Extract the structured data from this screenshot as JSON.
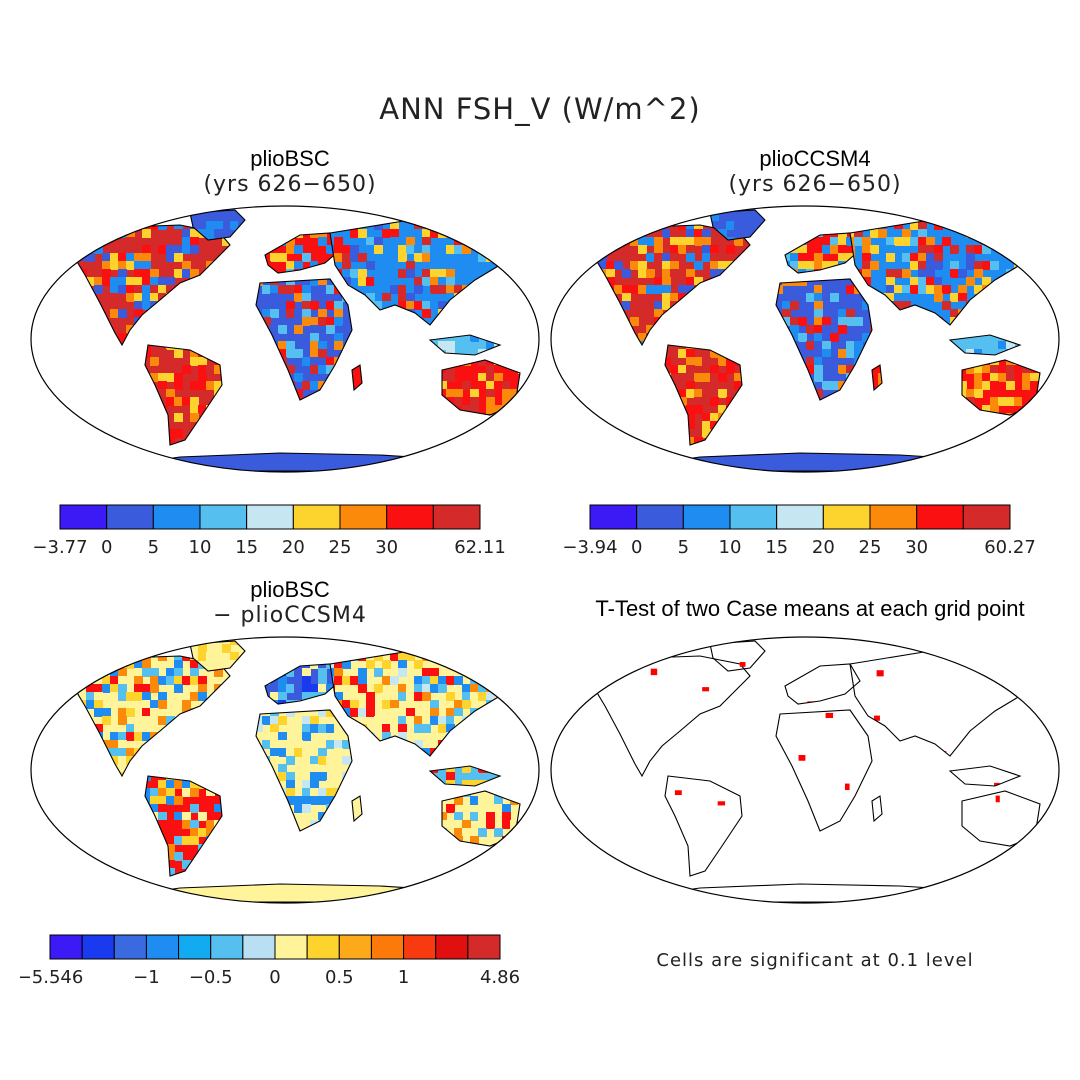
{
  "main_title": "ANN FSH_V (W/m^2)",
  "panels": [
    {
      "title": "plioBSC",
      "subtitle": "(yrs 626−650)"
    },
    {
      "title": "plioCCSM4",
      "subtitle": "(yrs 626−650)"
    },
    {
      "title": "plioBSC",
      "subtitle": "− plioCCSM4"
    },
    {
      "title": "T-Test of two Case means at each grid point",
      "subtitle": ""
    }
  ],
  "colorbars": [
    {
      "colors": [
        "#3c1af5",
        "#3a5bdc",
        "#1e8cf0",
        "#55bff0",
        "#c6e6f2",
        "#fdd32e",
        "#fb8a0a",
        "#fa1010",
        "#d42a2a"
      ],
      "labels": [
        "−3.77",
        "0",
        "5",
        "10",
        "15",
        "20",
        "25",
        "30",
        "62.11"
      ],
      "label_positions": [
        0,
        1,
        2,
        3,
        4,
        5,
        6,
        7,
        9
      ]
    },
    {
      "colors": [
        "#3c1af5",
        "#3a5bdc",
        "#1e8cf0",
        "#55bff0",
        "#c6e6f2",
        "#fdd32e",
        "#fb8a0a",
        "#fa1010",
        "#d42a2a"
      ],
      "labels": [
        "−3.94",
        "0",
        "5",
        "10",
        "15",
        "20",
        "25",
        "30",
        "60.27"
      ],
      "label_positions": [
        0,
        1,
        2,
        3,
        4,
        5,
        6,
        7,
        9
      ]
    },
    {
      "colors": [
        "#3c1af5",
        "#1a3af0",
        "#3a6ae0",
        "#1e8cf0",
        "#12aaf0",
        "#55bff0",
        "#b8e0f2",
        "#fff49a",
        "#fdd32e",
        "#fca91a",
        "#fb7a0a",
        "#f83a10",
        "#e01010",
        "#d42a2a"
      ],
      "labels": [
        "−5.546",
        "−1",
        "−0.5",
        "0",
        "0.5",
        "1",
        "4.86"
      ],
      "label_positions": [
        0,
        3,
        5,
        7,
        9,
        11,
        14
      ]
    }
  ],
  "note": "Cells are significant at 0.1 level",
  "palette": {
    "mean_land": [
      "#3a5bdc",
      "#1e8cf0",
      "#55bff0",
      "#c6e6f2",
      "#fdd32e",
      "#fb8a0a",
      "#fa1010",
      "#d42a2a"
    ],
    "diff_land": [
      "#fff49a",
      "#fdd32e",
      "#c6e6f2",
      "#55bff0",
      "#1e8cf0",
      "#fb8a0a",
      "#fa1010",
      "#3a5bdc"
    ],
    "ttest": "#ff0000",
    "coast": "#000000"
  }
}
